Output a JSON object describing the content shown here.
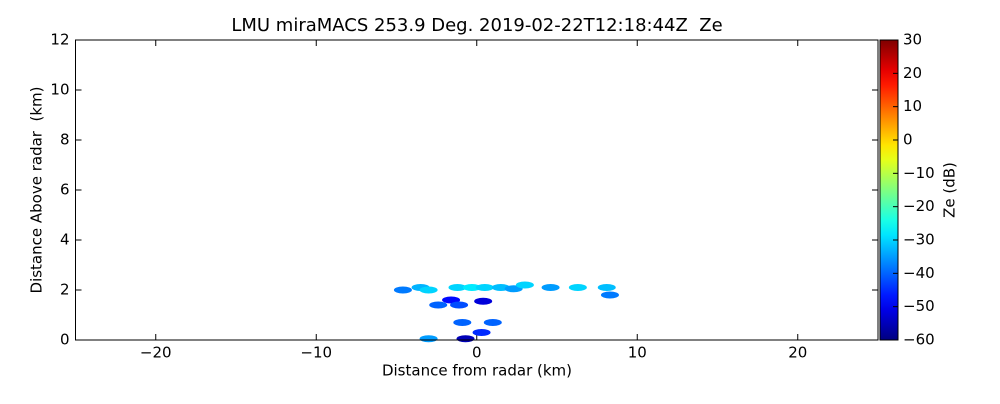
{
  "chart_data": {
    "type": "scatter",
    "title": "LMU miraMACS 253.9 Deg. 2019-02-22T12:18:44Z  Ze",
    "x_label": "Distance from radar (km)",
    "y_label": "Distance Above radar  (km)",
    "colorbar_label": "Ze (dB)",
    "colormap": "jet",
    "x": [
      -4.6,
      -3.5,
      -3.0,
      -2.4,
      -1.2,
      -0.3,
      0.5,
      1.5,
      2.3,
      3.0,
      4.6,
      6.3,
      8.1,
      8.3,
      -1.6,
      0.4,
      -1.1,
      -0.9,
      0.3,
      1.0,
      -3.0,
      -0.7
    ],
    "y": [
      2.0,
      2.1,
      2.0,
      1.4,
      2.1,
      2.1,
      2.1,
      2.1,
      2.05,
      2.2,
      2.1,
      2.1,
      2.1,
      1.8,
      1.6,
      1.55,
      1.4,
      0.7,
      0.3,
      0.7,
      0.05,
      0.05
    ],
    "values": [
      -38,
      -33,
      -30,
      -40,
      -30,
      -28,
      -30,
      -32,
      -35,
      -30,
      -35,
      -30,
      -32,
      -38,
      -48,
      -52,
      -42,
      -40,
      -45,
      -40,
      -35,
      -55
    ],
    "xlim": [
      -25,
      25
    ],
    "xticks": [
      {
        "value": -20,
        "label": "−20"
      },
      {
        "value": -10,
        "label": "−10"
      },
      0,
      10,
      20
    ],
    "ylim": [
      0,
      12
    ],
    "yticks": [
      0,
      2,
      4,
      6,
      8,
      10,
      12
    ],
    "clim": [
      -60,
      30
    ],
    "cticks": [
      {
        "value": -60,
        "label": "−60"
      },
      {
        "value": -50,
        "label": "−50"
      },
      {
        "value": -40,
        "label": "−40"
      },
      {
        "value": -30,
        "label": "−30"
      },
      {
        "value": -20,
        "label": "−20"
      },
      {
        "value": -10,
        "label": "−10"
      },
      0,
      10,
      20,
      30
    ]
  }
}
